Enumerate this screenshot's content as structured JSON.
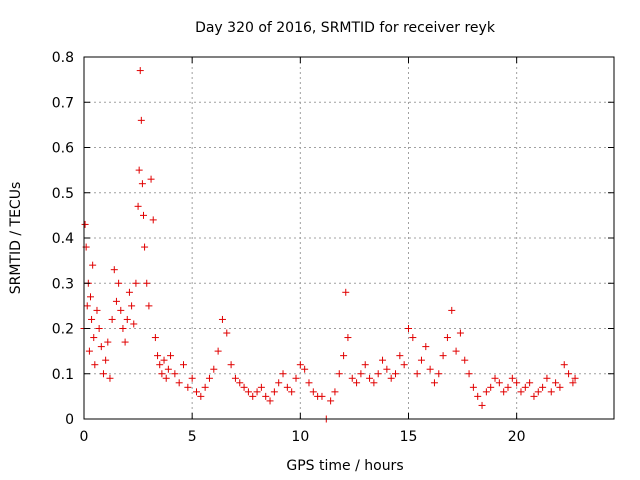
{
  "chart_data": {
    "type": "scatter",
    "title": "Day 320 of 2016, SRMTID for receiver reyk",
    "xlabel": "GPS time / hours",
    "ylabel": "SRMTID / TECUs",
    "xlim": [
      0,
      24.5
    ],
    "ylim": [
      0,
      0.8
    ],
    "xticks": [
      0,
      5,
      10,
      15,
      20
    ],
    "yticks": [
      0,
      0.1,
      0.2,
      0.3,
      0.4,
      0.5,
      0.6,
      0.7,
      0.8
    ],
    "xtick_labels": [
      "0",
      "5",
      "10",
      "15",
      "20"
    ],
    "ytick_labels": [
      "0",
      "0.1",
      "0.2",
      "0.3",
      "0.4",
      "0.5",
      "0.6",
      "0.7",
      "0.8"
    ],
    "marker": "+",
    "color": "#e00000",
    "grid": true,
    "series": [
      {
        "name": "SRMTID",
        "x": [
          0.0,
          0.05,
          0.1,
          0.15,
          0.2,
          0.25,
          0.3,
          0.35,
          0.4,
          0.45,
          0.5,
          0.6,
          0.7,
          0.8,
          0.9,
          1.0,
          1.1,
          1.2,
          1.3,
          1.4,
          1.5,
          1.6,
          1.7,
          1.8,
          1.9,
          2.0,
          2.1,
          2.2,
          2.3,
          2.4,
          2.5,
          2.55,
          2.6,
          2.65,
          2.7,
          2.75,
          2.8,
          2.9,
          3.0,
          3.1,
          3.2,
          3.3,
          3.4,
          3.5,
          3.6,
          3.7,
          3.8,
          3.9,
          4.0,
          4.2,
          4.4,
          4.6,
          4.8,
          5.0,
          5.2,
          5.4,
          5.6,
          5.8,
          6.0,
          6.2,
          6.4,
          6.6,
          6.8,
          7.0,
          7.2,
          7.4,
          7.6,
          7.8,
          8.0,
          8.2,
          8.4,
          8.6,
          8.8,
          9.0,
          9.2,
          9.4,
          9.6,
          9.8,
          10.0,
          10.2,
          10.4,
          10.6,
          10.8,
          11.0,
          11.2,
          11.4,
          11.6,
          11.8,
          12.0,
          12.1,
          12.2,
          12.4,
          12.6,
          12.8,
          13.0,
          13.2,
          13.4,
          13.6,
          13.8,
          14.0,
          14.2,
          14.4,
          14.6,
          14.8,
          15.0,
          15.2,
          15.4,
          15.6,
          15.8,
          16.0,
          16.2,
          16.4,
          16.6,
          16.8,
          17.0,
          17.2,
          17.4,
          17.6,
          17.8,
          18.0,
          18.2,
          18.4,
          18.6,
          18.8,
          19.0,
          19.2,
          19.4,
          19.6,
          19.8,
          20.0,
          20.2,
          20.4,
          20.6,
          20.8,
          21.0,
          21.2,
          21.4,
          21.6,
          21.8,
          22.0,
          22.2,
          22.4,
          22.6,
          22.7
        ],
        "y": [
          0.2,
          0.43,
          0.38,
          0.25,
          0.3,
          0.15,
          0.27,
          0.22,
          0.34,
          0.18,
          0.12,
          0.24,
          0.2,
          0.16,
          0.1,
          0.13,
          0.17,
          0.09,
          0.22,
          0.33,
          0.26,
          0.3,
          0.24,
          0.2,
          0.17,
          0.22,
          0.28,
          0.25,
          0.21,
          0.3,
          0.47,
          0.55,
          0.77,
          0.66,
          0.52,
          0.45,
          0.38,
          0.3,
          0.25,
          0.53,
          0.44,
          0.18,
          0.14,
          0.12,
          0.1,
          0.13,
          0.09,
          0.11,
          0.14,
          0.1,
          0.08,
          0.12,
          0.07,
          0.09,
          0.06,
          0.05,
          0.07,
          0.09,
          0.11,
          0.15,
          0.22,
          0.19,
          0.12,
          0.09,
          0.08,
          0.07,
          0.06,
          0.05,
          0.06,
          0.07,
          0.05,
          0.04,
          0.06,
          0.08,
          0.1,
          0.07,
          0.06,
          0.09,
          0.12,
          0.11,
          0.08,
          0.06,
          0.05,
          0.05,
          0.0,
          0.04,
          0.06,
          0.1,
          0.14,
          0.28,
          0.18,
          0.09,
          0.08,
          0.1,
          0.12,
          0.09,
          0.08,
          0.1,
          0.13,
          0.11,
          0.09,
          0.1,
          0.14,
          0.12,
          0.2,
          0.18,
          0.1,
          0.13,
          0.16,
          0.11,
          0.08,
          0.1,
          0.14,
          0.18,
          0.24,
          0.15,
          0.19,
          0.13,
          0.1,
          0.07,
          0.05,
          0.03,
          0.06,
          0.07,
          0.09,
          0.08,
          0.06,
          0.07,
          0.09,
          0.08,
          0.06,
          0.07,
          0.08,
          0.05,
          0.06,
          0.07,
          0.09,
          0.06,
          0.08,
          0.07,
          0.12,
          0.1,
          0.08,
          0.09
        ]
      }
    ]
  }
}
